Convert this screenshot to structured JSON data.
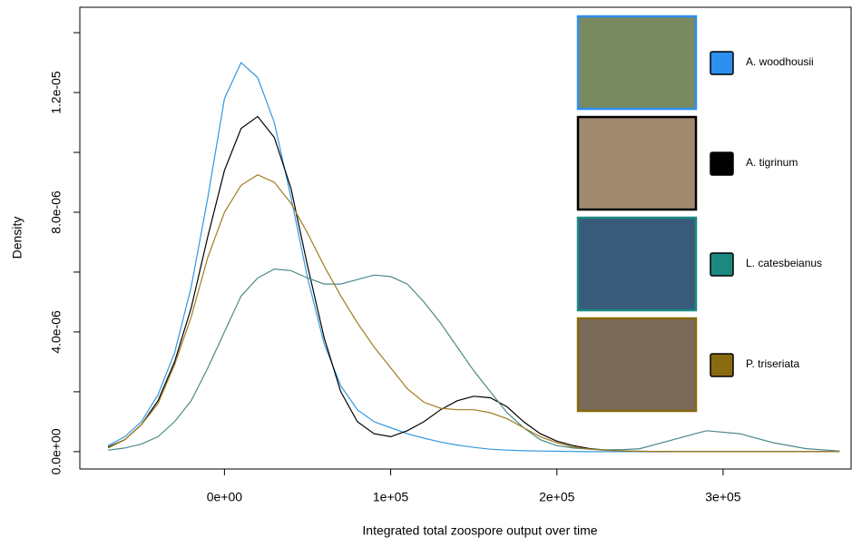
{
  "chart_data": {
    "type": "line",
    "x_label": "Integrated total zoospore output over time",
    "y_label": "Density",
    "x": [
      -70000,
      -60000,
      -50000,
      -40000,
      -30000,
      -20000,
      -10000,
      0,
      10000,
      20000,
      30000,
      40000,
      50000,
      60000,
      70000,
      80000,
      90000,
      100000,
      110000,
      120000,
      130000,
      140000,
      150000,
      160000,
      170000,
      180000,
      190000,
      200000,
      210000,
      220000,
      230000,
      240000,
      250000,
      270000,
      290000,
      310000,
      330000,
      350000,
      370000
    ],
    "series": [
      {
        "name": "A. woodhousii",
        "color": "#3399e0",
        "swatch": "#2d8ff0",
        "values": [
          2e-07,
          5e-07,
          1e-06,
          1.9e-06,
          3.3e-06,
          5.5e-06,
          8.5e-06,
          1.18e-05,
          1.3e-05,
          1.25e-05,
          1.1e-05,
          8.5e-06,
          5.8e-06,
          3.6e-06,
          2.2e-06,
          1.4e-06,
          1e-06,
          8e-07,
          6e-07,
          4.5e-07,
          3.2e-07,
          2.2e-07,
          1.4e-07,
          8e-08,
          5e-08,
          3e-08,
          2e-08,
          1e-08,
          5e-09,
          0,
          0,
          0,
          0,
          0,
          0,
          0,
          0,
          0,
          0
        ]
      },
      {
        "name": "A. tigrinum",
        "color": "#000000",
        "swatch": "#000000",
        "values": [
          1.5e-07,
          4e-07,
          9e-07,
          1.7e-06,
          3e-06,
          4.8e-06,
          7.2e-06,
          9.4e-06,
          1.08e-05,
          1.12e-05,
          1.05e-05,
          8.8e-06,
          6.2e-06,
          3.8e-06,
          2e-06,
          1e-06,
          6e-07,
          5e-07,
          7e-07,
          1e-06,
          1.4e-06,
          1.7e-06,
          1.85e-06,
          1.8e-06,
          1.5e-06,
          1e-06,
          6e-07,
          3.5e-07,
          2e-07,
          1e-07,
          5e-08,
          2e-08,
          1e-08,
          0,
          0,
          0,
          0,
          0,
          0
        ]
      },
      {
        "name": "L. catesbeianus",
        "color": "#4a8a88",
        "swatch": "#1a8a80",
        "values": [
          5e-08,
          1.2e-07,
          2.5e-07,
          5e-07,
          1e-06,
          1.7e-06,
          2.8e-06,
          4e-06,
          5.2e-06,
          5.8e-06,
          6.1e-06,
          6.05e-06,
          5.8e-06,
          5.6e-06,
          5.6e-06,
          5.75e-06,
          5.9e-06,
          5.85e-06,
          5.6e-06,
          5e-06,
          4.3e-06,
          3.5e-06,
          2.7e-06,
          2e-06,
          1.3e-06,
          8e-07,
          4e-07,
          2e-07,
          1.2e-07,
          8e-08,
          6e-08,
          7e-08,
          1e-07,
          4e-07,
          7e-07,
          6e-07,
          3e-07,
          1e-07,
          2e-08
        ]
      },
      {
        "name": "P. triseriata",
        "color": "#a07d20",
        "swatch": "#8a6a10",
        "values": [
          1.2e-07,
          4e-07,
          9e-07,
          1.6e-06,
          2.9e-06,
          4.5e-06,
          6.5e-06,
          8e-06,
          8.9e-06,
          9.25e-06,
          9e-06,
          8.3e-06,
          7.3e-06,
          6.2e-06,
          5.2e-06,
          4.3e-06,
          3.5e-06,
          2.8e-06,
          2.1e-06,
          1.65e-06,
          1.45e-06,
          1.4e-06,
          1.4e-06,
          1.3e-06,
          1.1e-06,
          8e-07,
          5e-07,
          3e-07,
          1.5e-07,
          8e-08,
          4e-08,
          2e-08,
          1e-08,
          0,
          0,
          0,
          0,
          0,
          0
        ]
      }
    ],
    "xlim": [
      -87000,
      377000
    ],
    "ylim": [
      -5.8e-07,
      1.485e-05
    ],
    "xticks": [
      {
        "value": 0,
        "label": "0e+00"
      },
      {
        "value": 100000,
        "label": "1e+05"
      },
      {
        "value": 200000,
        "label": "2e+05"
      },
      {
        "value": 300000,
        "label": "3e+05"
      }
    ],
    "yticks": [
      {
        "value": 0,
        "label": "0.0e+00"
      },
      {
        "value": 2e-06,
        "label": null
      },
      {
        "value": 4e-06,
        "label": "4.0e-06"
      },
      {
        "value": 6e-06,
        "label": null
      },
      {
        "value": 8e-06,
        "label": "8.0e-06"
      },
      {
        "value": 1e-05,
        "label": null
      },
      {
        "value": 1.2e-05,
        "label": "1.2e-05"
      },
      {
        "value": 1.4e-05,
        "label": null
      }
    ],
    "legend": "top-right",
    "grid": false
  }
}
